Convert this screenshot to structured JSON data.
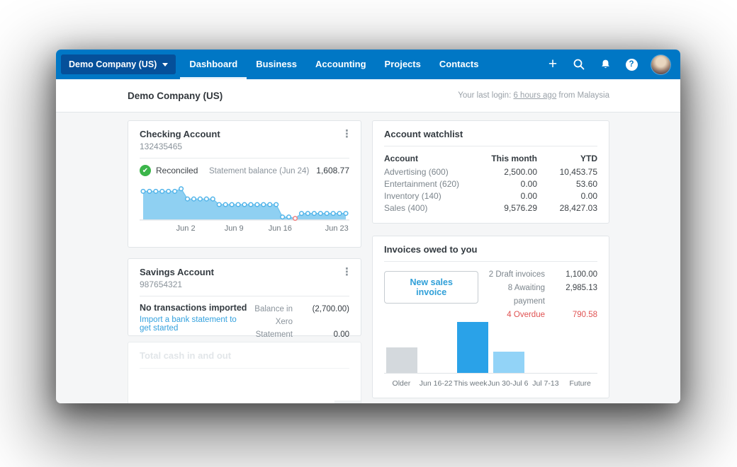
{
  "navbar": {
    "org_selector": "Demo Company (US)",
    "tabs": [
      {
        "label": "Dashboard",
        "active": true
      },
      {
        "label": "Business",
        "active": false
      },
      {
        "label": "Accounting",
        "active": false
      },
      {
        "label": "Projects",
        "active": false
      },
      {
        "label": "Contacts",
        "active": false
      }
    ],
    "icons": [
      "plus",
      "search",
      "notifications",
      "help"
    ]
  },
  "header": {
    "title": "Demo Company (US)",
    "last_login_prefix": "Your last login:",
    "last_login_link": "6 hours ago",
    "last_login_suffix": "from Malaysia"
  },
  "checking_account": {
    "title": "Checking Account",
    "account_number": "132435465",
    "status": "Reconciled",
    "statement_label": "Statement balance (Jun 24)",
    "statement_value": "1,608.77"
  },
  "savings_account": {
    "title": "Savings Account",
    "account_number": "987654321",
    "empty_title": "No transactions imported",
    "empty_link": "Import a bank statement to get started",
    "rows": [
      {
        "label": "Balance in Xero",
        "value": "(2,700.00)"
      },
      {
        "label": "Statement balance",
        "value": "0.00"
      }
    ]
  },
  "total_cash": {
    "title": "Total cash in and out"
  },
  "watchlist": {
    "title": "Account watchlist",
    "columns": [
      "Account",
      "This month",
      "YTD"
    ],
    "rows": [
      [
        "Advertising (600)",
        "2,500.00",
        "10,453.75"
      ],
      [
        "Entertainment (620)",
        "0.00",
        "53.60"
      ],
      [
        "Inventory (140)",
        "0.00",
        "0.00"
      ],
      [
        "Sales (400)",
        "9,576.29",
        "28,427.03"
      ]
    ]
  },
  "invoices": {
    "title": "Invoices owed to you",
    "button": "New sales invoice",
    "statuses": [
      {
        "label": "2 Draft invoices",
        "value": "1,100.00",
        "overdue": false
      },
      {
        "label": "8 Awaiting payment",
        "value": "2,985.13",
        "overdue": false
      },
      {
        "label": "4 Overdue",
        "value": "790.58",
        "overdue": true
      }
    ]
  },
  "chart_data": [
    {
      "id": "checking-balance",
      "type": "area",
      "title": "Checking Account statement balance over time",
      "x_tick_labels": [
        "Jun 2",
        "Jun 9",
        "Jun 16",
        "Jun 23"
      ],
      "x_tick_percents": [
        22,
        45,
        67,
        94
      ],
      "values": [
        1600,
        1600,
        1600,
        1600,
        1600,
        1600,
        1750,
        1150,
        1150,
        1150,
        1150,
        1150,
        820,
        820,
        820,
        820,
        820,
        820,
        820,
        820,
        820,
        820,
        90,
        90,
        10,
        300,
        300,
        300,
        300,
        300,
        300,
        300,
        300
      ],
      "highlight_index": 24,
      "ylim": [
        0,
        1900
      ],
      "grid": false,
      "colors": {
        "fill": "#8FD0F2",
        "stroke": "#6CC1EC",
        "marker_stroke": "#4FB3E9",
        "highlight_stroke": "#F08080"
      }
    },
    {
      "id": "invoices-owed",
      "type": "bar",
      "title": "Invoices owed to you by week",
      "categories": [
        "Older",
        "Jun 16-22",
        "This week",
        "Jun 30-Jul 6",
        "Jul 7-13",
        "Future"
      ],
      "values": [
        790,
        0,
        1560,
        650,
        0,
        0
      ],
      "bar_colors": [
        "#D4D9DD",
        "#D4D9DD",
        "#2AA2E8",
        "#92D3F7",
        "#D4D9DD",
        "#D4D9DD"
      ],
      "ylim": [
        0,
        1700
      ],
      "grid": false
    }
  ],
  "colors": {
    "navbar": "#0077C5",
    "org_button": "#05509A",
    "link_blue": "#33A1DE",
    "reconciled_green": "#3BB54A",
    "overdue_red": "#E05252",
    "text_dark": "#3E4348",
    "text_muted": "#7D868D"
  }
}
